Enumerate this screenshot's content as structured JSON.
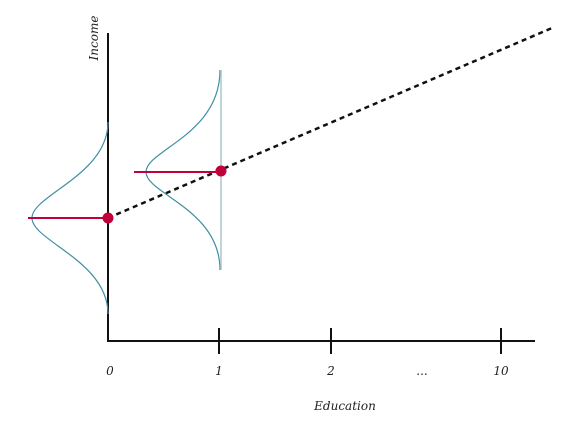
{
  "axes": {
    "y_label": "Income",
    "x_label": "Education"
  },
  "x_ticks": [
    "0",
    "1",
    "2",
    "...",
    "10"
  ],
  "colors": {
    "axis": "#111111",
    "curve": "#3f8fa6",
    "marker": "#c2003a",
    "regression": "#111111"
  }
}
